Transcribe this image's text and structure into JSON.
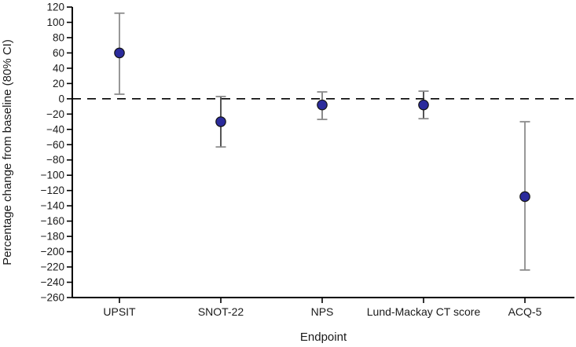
{
  "chart_data": {
    "type": "scatter",
    "title": "",
    "xlabel": "Endpoint",
    "ylabel": "Percentage change from baseline (80% CI)",
    "ylim": [
      -260,
      120
    ],
    "yticks": [
      120,
      100,
      80,
      60,
      40,
      20,
      0,
      -20,
      -40,
      -60,
      -80,
      -100,
      -120,
      -140,
      -160,
      -180,
      -200,
      -220,
      -240,
      -260
    ],
    "grid": false,
    "legend": "none",
    "zero_reference_line": 0,
    "categories": [
      "UPSIT",
      "SNOT-22",
      "NPS",
      "Lund-Mackay CT score",
      "ACQ-5"
    ],
    "series": [
      {
        "name": "Percentage change from baseline (80% CI)",
        "values": [
          60,
          -30,
          -8,
          -8,
          -128
        ],
        "ci_low": [
          6,
          -63,
          -27,
          -26,
          -224
        ],
        "ci_high": [
          112,
          3,
          9,
          10,
          -30
        ]
      }
    ],
    "colors": {
      "marker_fill": "#2b2b9c",
      "marker_edge": "#141414",
      "error_bar_lines": [
        "#7f7f7f",
        "#2a2a2a",
        "#6e6e6e",
        "#2a2a2a",
        "#7f7f7f"
      ],
      "error_bar_caps": "#8c8c8c",
      "axis": "#000000",
      "zero_line": "#000000"
    }
  }
}
